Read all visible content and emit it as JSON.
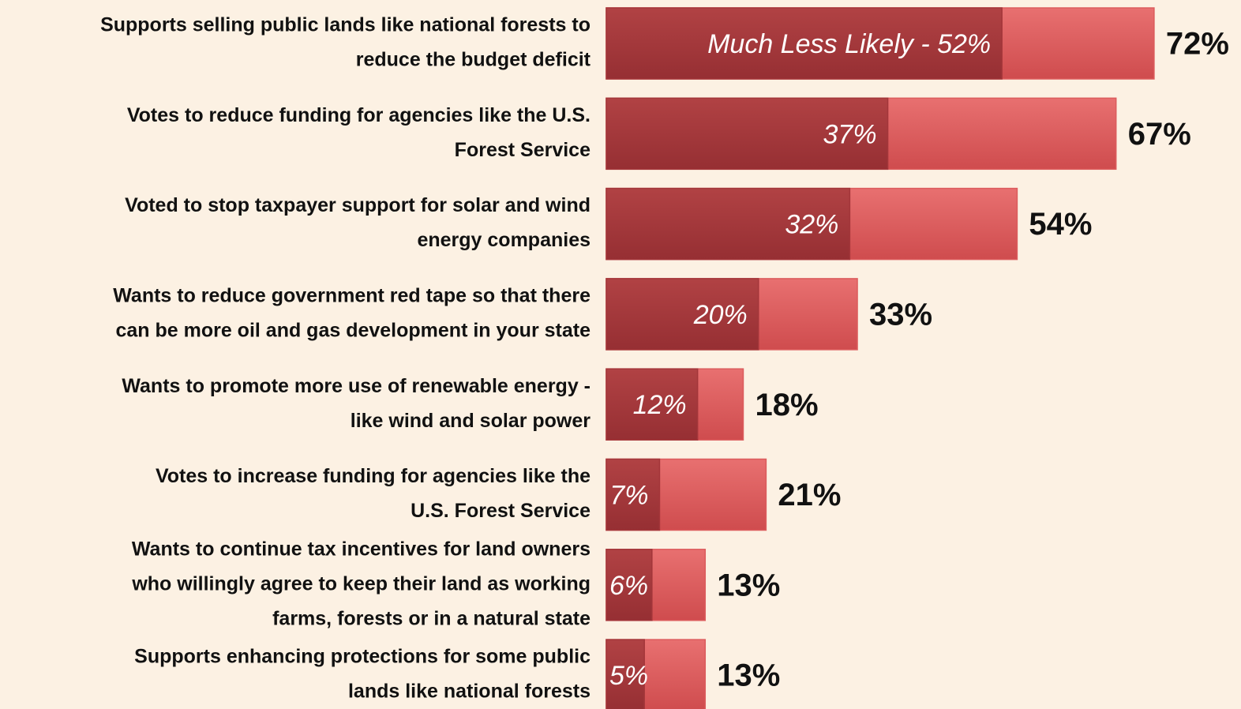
{
  "chart_data": {
    "type": "overlap-bar",
    "categories": [
      [
        "Supports selling public lands like national forests to",
        "reduce the budget deficit"
      ],
      [
        "Votes to reduce funding for agencies like the U.S.",
        "Forest Service"
      ],
      [
        "Voted to stop taxpayer support for solar and wind",
        "energy companies"
      ],
      [
        "Wants to reduce government red tape so that there",
        "can be more oil and gas development in your state"
      ],
      [
        "Wants to promote more use of renewable energy -",
        "like wind and solar power"
      ],
      [
        "Votes to increase funding for agencies like the",
        "U.S. Forest Service"
      ],
      [
        "Wants to continue tax incentives for land owners",
        "who willingly agree to keep their land as working",
        "farms, forests or in a natural state"
      ],
      [
        "Supports enhancing protections for some public",
        "lands like national forests"
      ]
    ],
    "series": [
      {
        "color": "#dc5c5d",
        "values": [
          72,
          67,
          54,
          33,
          18,
          21,
          13,
          13
        ],
        "value_labels": [
          "72%",
          "67%",
          "54%",
          "33%",
          "18%",
          "21%",
          "13%",
          "13%"
        ]
      },
      {
        "name": "Much Less Likely",
        "color": "#a3363a",
        "values": [
          52,
          37,
          32,
          20,
          12,
          7,
          6,
          5
        ],
        "value_labels": [
          "Much Less Likely - 52%",
          "37%",
          "32%",
          "20%",
          "12%",
          "7%",
          "6%",
          "5%"
        ]
      }
    ],
    "xlim": [
      0,
      80
    ]
  }
}
